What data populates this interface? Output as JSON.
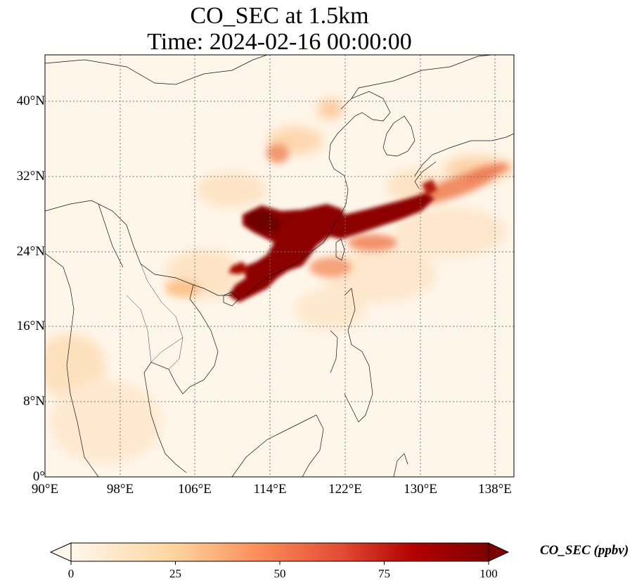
{
  "title": {
    "line1": "CO_SEC at 1.5km",
    "line2": "Time: 2024-02-16 00:00:00"
  },
  "map": {
    "lon_range": [
      90,
      140
    ],
    "lat_range": [
      0,
      45
    ],
    "lat_ticks": [
      "40°N",
      "32°N",
      "24°N",
      "16°N",
      "8°N",
      "0°"
    ],
    "lon_ticks": [
      "90°E",
      "98°E",
      "106°E",
      "114°E",
      "122°E",
      "130°E",
      "138°E"
    ],
    "gridlines": "dotted"
  },
  "colorbar": {
    "label": "CO_SEC (ppbv)",
    "ticks": [
      "0",
      "25",
      "50",
      "75",
      "100"
    ],
    "extend": "both",
    "colormap": "OrRd"
  }
}
